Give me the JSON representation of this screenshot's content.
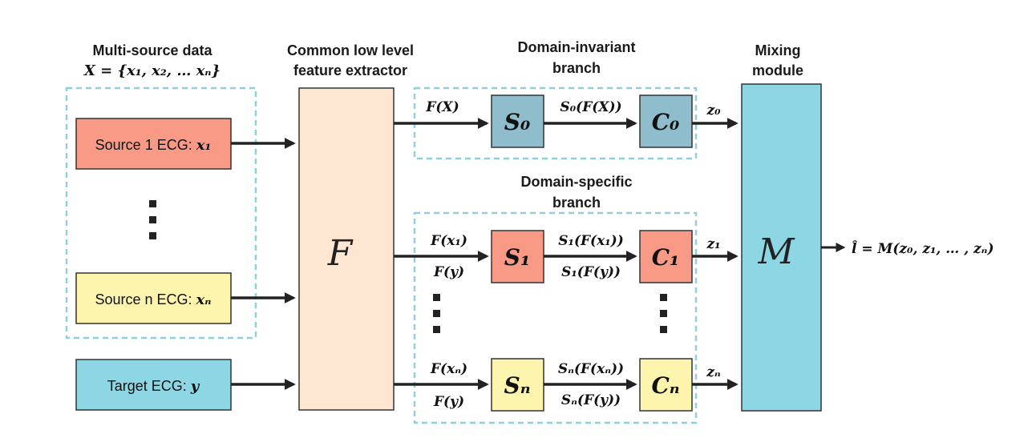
{
  "headers": {
    "multi_source": "Multi-source data",
    "multi_source_set": "X = {x₁, x₂, … xₙ}",
    "extractor_line1": "Common low level",
    "extractor_line2": "feature extractor",
    "invariant_line1": "Domain-invariant",
    "invariant_line2": "branch",
    "specific_line1": "Domain-specific",
    "specific_line2": "branch",
    "mixing_line1": "Mixing",
    "mixing_line2": "module"
  },
  "sources": {
    "source1_text": "Source 1 ECG: ",
    "source1_var": "x₁",
    "sourcen_text": "Source n ECG: ",
    "sourcen_var": "xₙ",
    "target_text": "Target ECG: ",
    "target_var": "y"
  },
  "blocks": {
    "extractor": "F",
    "mixer": "M",
    "s0": "S₀",
    "c0": "C₀",
    "s1": "S₁",
    "c1": "C₁",
    "sn": "Sₙ",
    "cn": "Cₙ"
  },
  "edge_labels": {
    "fx": "F(X)",
    "s0fx": "S₀(F(X))",
    "z0": "z₀",
    "fx1": "F(x₁)",
    "fy1": "F(y)",
    "s1fx1": "S₁(F(x₁))",
    "s1fy": "S₁(F(y))",
    "z1": "z₁",
    "fxn": "F(xₙ)",
    "fyn": "F(y)",
    "snfxn": "Sₙ(F(xₙ))",
    "snfy": "Sₙ(F(y))",
    "zn": "zₙ",
    "output": "l̂ = M(z₀, z₁, … , zₙ)"
  },
  "colors": {
    "source1": "#f99a86",
    "sourcen": "#fdf4ae",
    "target": "#8dd6e4",
    "extractor": "#fde6d2",
    "invariant_block": "#8fbdcb",
    "s1c1": "#f99a86",
    "sncn": "#fdf4ae",
    "mixer": "#8dd6e4",
    "dashed_border": "#8fd0dc"
  }
}
